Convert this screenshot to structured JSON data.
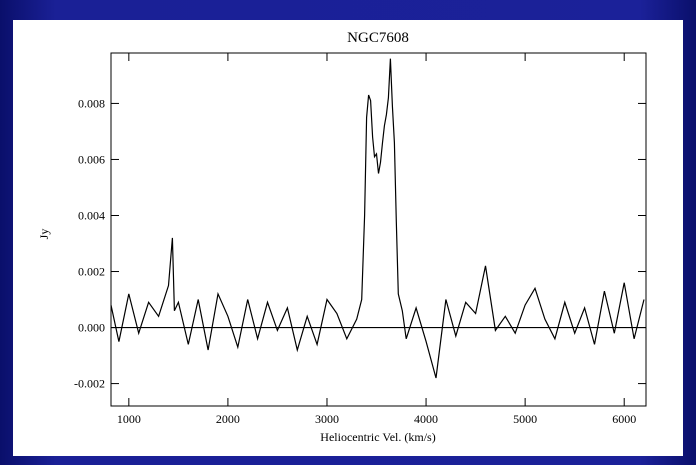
{
  "chart_data": {
    "type": "line",
    "title": "NGC7608",
    "xlabel": "Heliocentric Vel. (km/s)",
    "ylabel": "Jy",
    "xlim": [
      820,
      6220
    ],
    "ylim": [
      -0.0028,
      0.0098
    ],
    "x_ticks": [
      1000,
      2000,
      3000,
      4000,
      5000,
      6000
    ],
    "x_tick_labels": [
      "1000",
      "2000",
      "3000",
      "4000",
      "5000",
      "6000"
    ],
    "y_ticks": [
      -0.002,
      0.0,
      0.002,
      0.004,
      0.006,
      0.008
    ],
    "y_tick_labels": [
      "-0.002",
      "0.000",
      "0.002",
      "0.004",
      "0.006",
      "0.008"
    ],
    "baseline": 0.0,
    "grid": false,
    "series": [
      {
        "x": [
          820,
          900,
          1000,
          1100,
          1200,
          1300,
          1400,
          1440,
          1460,
          1500,
          1600,
          1700,
          1800,
          1900,
          2000,
          2100,
          2200,
          2300,
          2400,
          2500,
          2600,
          2700,
          2800,
          2900,
          3000,
          3100,
          3200,
          3300,
          3350,
          3380,
          3400,
          3420,
          3440,
          3460,
          3480,
          3500,
          3520,
          3540,
          3560,
          3580,
          3600,
          3620,
          3640,
          3660,
          3680,
          3700,
          3720,
          3760,
          3800,
          3900,
          4000,
          4100,
          4200,
          4300,
          4400,
          4500,
          4600,
          4700,
          4800,
          4900,
          5000,
          5100,
          5200,
          5300,
          5400,
          5500,
          5600,
          5700,
          5800,
          5900,
          6000,
          6100,
          6200
        ],
        "y": [
          0.0008,
          -0.0005,
          0.0012,
          -0.0002,
          0.0009,
          0.0004,
          0.0015,
          0.0032,
          0.0006,
          0.0009,
          -0.0006,
          0.001,
          -0.0008,
          0.0012,
          0.0004,
          -0.0007,
          0.001,
          -0.0004,
          0.0009,
          -0.0001,
          0.0007,
          -0.0008,
          0.0004,
          -0.0006,
          0.001,
          0.0005,
          -0.0004,
          0.0003,
          0.001,
          0.004,
          0.0075,
          0.0083,
          0.0081,
          0.0068,
          0.0061,
          0.0062,
          0.0055,
          0.0059,
          0.0066,
          0.0072,
          0.0076,
          0.0082,
          0.0096,
          0.0079,
          0.0066,
          0.0038,
          0.0012,
          0.0006,
          -0.0004,
          0.0007,
          -0.0005,
          -0.0018,
          0.001,
          -0.0003,
          0.0009,
          0.0005,
          0.0022,
          -0.0001,
          0.0004,
          -0.0002,
          0.0008,
          0.0014,
          0.0003,
          -0.0004,
          0.0009,
          -0.0002,
          0.0007,
          -0.0006,
          0.0013,
          -0.0002,
          0.0016,
          -0.0004,
          0.001
        ]
      }
    ]
  }
}
